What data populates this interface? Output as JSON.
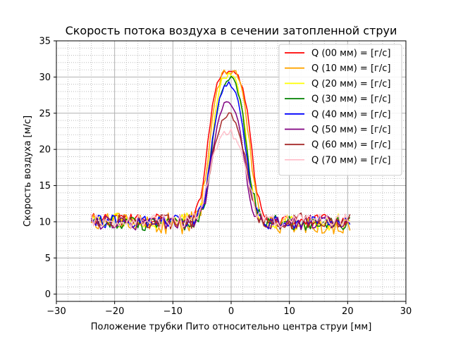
{
  "chart_data": {
    "type": "line",
    "title": "Скорость потока воздуха в сечении затопленной струи",
    "xlabel": "Положение трубки Пито относительно центра струи [мм]",
    "ylabel": "Скорость воздуха [м/с]",
    "xlim": [
      -30,
      30
    ],
    "ylim": [
      -1,
      35
    ],
    "xticks": [
      -30,
      -20,
      -10,
      0,
      10,
      20,
      30
    ],
    "yticks": [
      0,
      5,
      10,
      15,
      20,
      25,
      30,
      35
    ],
    "grid": {
      "major": true,
      "minor": true
    },
    "legend_position": "top-right",
    "series": [
      {
        "name": "Q (00 мм) = [г/с]",
        "color": "#ff0000",
        "base": 10.3,
        "noise": 0.7,
        "top": 30.8,
        "half_left": -4.2,
        "half_right": 3.6,
        "flat_half": 1.6,
        "seed": 1
      },
      {
        "name": "Q (10 мм) = [г/с]",
        "color": "#ffa500",
        "base": 9.8,
        "noise": 1.5,
        "top": 31.2,
        "half_left": -3.9,
        "half_right": 3.3,
        "flat_half": 1.3,
        "seed": 2
      },
      {
        "name": "Q (20 мм) = [г/с]",
        "color": "#ffff00",
        "base": 10.0,
        "noise": 1.1,
        "top": 30.8,
        "half_left": -3.5,
        "half_right": 2.8,
        "flat_half": 1.0,
        "seed": 3
      },
      {
        "name": "Q (30 мм) = [г/с]",
        "color": "#008000",
        "base": 9.9,
        "noise": 1.0,
        "top": 30.5,
        "half_left": -3.4,
        "half_right": 2.9,
        "flat_half": 0.5,
        "seed": 4
      },
      {
        "name": "Q (40 мм) = [г/с]",
        "color": "#0000ff",
        "base": 10.0,
        "noise": 0.9,
        "top": 29.8,
        "half_left": -3.6,
        "half_right": 2.7,
        "flat_half": 0.3,
        "seed": 5
      },
      {
        "name": "Q (50 мм) = [г/с]",
        "color": "#800080",
        "base": 9.9,
        "noise": 0.9,
        "top": 27.3,
        "half_left": -3.6,
        "half_right": 2.5,
        "flat_half": 0.2,
        "seed": 6
      },
      {
        "name": "Q (60 мм) = [г/с]",
        "color": "#a52a2a",
        "base": 10.1,
        "noise": 1.0,
        "top": 25.2,
        "half_left": -3.8,
        "half_right": 2.9,
        "flat_half": 0.2,
        "seed": 7
      },
      {
        "name": "Q (70 мм) = [г/с]",
        "color": "#ffc0cb",
        "base": 10.1,
        "noise": 0.9,
        "top": 22.5,
        "half_left": -4.2,
        "half_right": 3.2,
        "flat_half": 0.5,
        "seed": 8
      }
    ],
    "x_start": -24,
    "x_end": 20.6,
    "x_step": 0.4
  }
}
